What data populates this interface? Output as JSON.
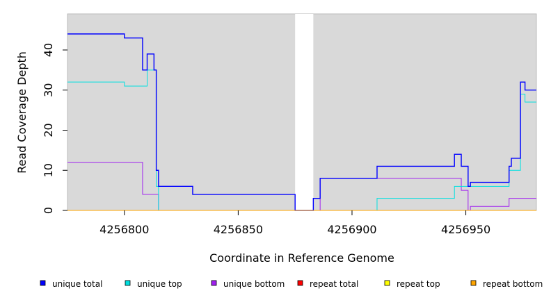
{
  "chart_data": {
    "type": "line",
    "xlabel": "Coordinate in Reference Genome",
    "ylabel": "Read Coverage Depth",
    "xlim": [
      4256775,
      4256981
    ],
    "ylim": [
      0,
      49
    ],
    "x_ticks": [
      4256800,
      4256850,
      4256900,
      4256950
    ],
    "x_tick_labels": [
      "4256800",
      "4256850",
      "4256900",
      "4256950"
    ],
    "y_ticks": [
      0,
      10,
      20,
      30,
      40
    ],
    "y_tick_labels": [
      "0",
      "10",
      "20",
      "30",
      "40"
    ],
    "gap_region": [
      4256875,
      4256883
    ],
    "background_color": "#d9d9d9",
    "gap_color": "#ffffff",
    "legend_placement": "bottom",
    "series": [
      {
        "name": "unique total",
        "color": "#0000ff",
        "points": [
          [
            4256775,
            44
          ],
          [
            4256800,
            44
          ],
          [
            4256800,
            43
          ],
          [
            4256808,
            43
          ],
          [
            4256808,
            35
          ],
          [
            4256810,
            35
          ],
          [
            4256810,
            39
          ],
          [
            4256813,
            39
          ],
          [
            4256813,
            35
          ],
          [
            4256814,
            35
          ],
          [
            4256814,
            10
          ],
          [
            4256815,
            10
          ],
          [
            4256815,
            6
          ],
          [
            4256830,
            6
          ],
          [
            4256830,
            4
          ],
          [
            4256875,
            4
          ],
          [
            4256875,
            0
          ],
          [
            4256883,
            0
          ],
          [
            4256883,
            3
          ],
          [
            4256886,
            3
          ],
          [
            4256886,
            8
          ],
          [
            4256911,
            8
          ],
          [
            4256911,
            11
          ],
          [
            4256945,
            11
          ],
          [
            4256945,
            14
          ],
          [
            4256948,
            14
          ],
          [
            4256948,
            11
          ],
          [
            4256951,
            11
          ],
          [
            4256951,
            6
          ],
          [
            4256952,
            6
          ],
          [
            4256952,
            7
          ],
          [
            4256969,
            7
          ],
          [
            4256969,
            11
          ],
          [
            4256970,
            11
          ],
          [
            4256970,
            13
          ],
          [
            4256974,
            13
          ],
          [
            4256974,
            32
          ],
          [
            4256976,
            32
          ],
          [
            4256976,
            30
          ],
          [
            4256981,
            30
          ]
        ]
      },
      {
        "name": "unique top",
        "color": "#00e0e0",
        "points": [
          [
            4256775,
            32
          ],
          [
            4256800,
            32
          ],
          [
            4256800,
            31
          ],
          [
            4256810,
            31
          ],
          [
            4256810,
            35
          ],
          [
            4256814,
            35
          ],
          [
            4256814,
            6
          ],
          [
            4256815,
            6
          ],
          [
            4256815,
            0
          ],
          [
            4256875,
            0
          ],
          [
            4256883,
            0
          ],
          [
            4256911,
            0
          ],
          [
            4256911,
            3
          ],
          [
            4256945,
            3
          ],
          [
            4256945,
            6
          ],
          [
            4256969,
            6
          ],
          [
            4256969,
            10
          ],
          [
            4256974,
            10
          ],
          [
            4256974,
            29
          ],
          [
            4256976,
            29
          ],
          [
            4256976,
            27
          ],
          [
            4256981,
            27
          ]
        ]
      },
      {
        "name": "unique bottom",
        "color": "#a020f0",
        "points": [
          [
            4256775,
            12
          ],
          [
            4256808,
            12
          ],
          [
            4256808,
            4
          ],
          [
            4256815,
            4
          ],
          [
            4256815,
            0
          ],
          [
            4256875,
            0
          ],
          [
            4256883,
            0
          ],
          [
            4256886,
            0
          ],
          [
            4256886,
            8
          ],
          [
            4256948,
            8
          ],
          [
            4256948,
            5
          ],
          [
            4256951,
            5
          ],
          [
            4256951,
            0
          ],
          [
            4256952,
            0
          ],
          [
            4256952,
            1
          ],
          [
            4256969,
            1
          ],
          [
            4256969,
            3
          ],
          [
            4256981,
            3
          ]
        ]
      },
      {
        "name": "repeat total",
        "color": "#ff0000",
        "points": [
          [
            4256775,
            0
          ],
          [
            4256981,
            0
          ]
        ]
      },
      {
        "name": "repeat top",
        "color": "#ffff00",
        "points": [
          [
            4256775,
            0
          ],
          [
            4256981,
            0
          ]
        ]
      },
      {
        "name": "repeat bottom",
        "color": "#ffa500",
        "points": [
          [
            4256775,
            0
          ],
          [
            4256981,
            0
          ]
        ]
      }
    ]
  }
}
